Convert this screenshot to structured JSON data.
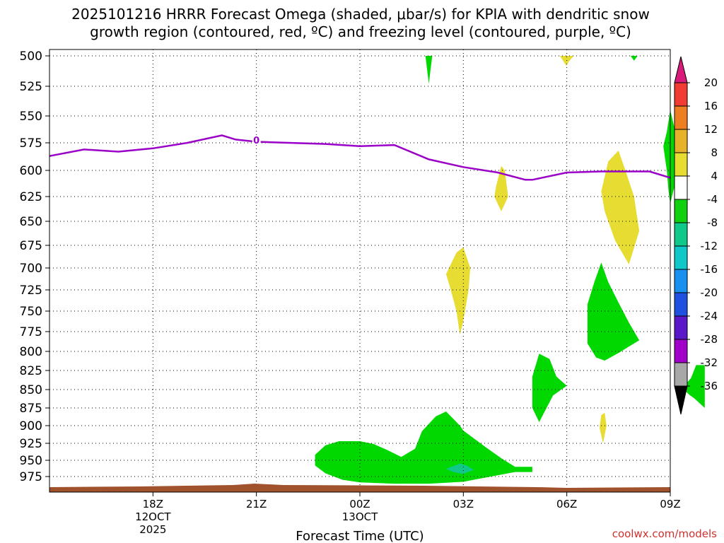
{
  "chart_data": {
    "type": "heatmap",
    "title_line1": "2025101216 HRRR Forecast Omega (shaded, μbar/s) for KPIA with dendritic snow",
    "title_line2": "growth region (contoured, red, ºC) and freezing level (contoured, purple, ºC)",
    "xlabel": "Forecast Time (UTC)",
    "credit": "coolwx.com/models",
    "x_range_hours": [
      -3,
      15
    ],
    "y_levels": [
      500,
      525,
      550,
      575,
      600,
      625,
      650,
      675,
      700,
      725,
      750,
      775,
      800,
      825,
      850,
      875,
      900,
      925,
      950,
      975
    ],
    "y_labels": [
      "500",
      "525",
      "550",
      "575",
      "600",
      "625",
      "650",
      "675",
      "700",
      "725",
      "750",
      "775",
      "800",
      "825",
      "850",
      "875",
      "900",
      "925",
      "950",
      "975"
    ],
    "x_ticks": [
      {
        "hour": 0,
        "label": "18Z",
        "sub1": "12OCT",
        "sub2": "2025"
      },
      {
        "hour": 3,
        "label": "21Z",
        "sub1": "",
        "sub2": ""
      },
      {
        "hour": 6,
        "label": "00Z",
        "sub1": "13OCT",
        "sub2": ""
      },
      {
        "hour": 9,
        "label": "03Z",
        "sub1": "",
        "sub2": ""
      },
      {
        "hour": 12,
        "label": "06Z",
        "sub1": "",
        "sub2": ""
      },
      {
        "hour": 15,
        "label": "09Z",
        "sub1": "",
        "sub2": ""
      }
    ],
    "freezing_level": {
      "label": "0",
      "color": "#9a00c8",
      "points": [
        [
          -3,
          587
        ],
        [
          -2,
          581
        ],
        [
          -1,
          583
        ],
        [
          0,
          580
        ],
        [
          1,
          575
        ],
        [
          2,
          568
        ],
        [
          2.4,
          572
        ],
        [
          3,
          574
        ],
        [
          5,
          576
        ],
        [
          6,
          578
        ],
        [
          7,
          577
        ],
        [
          8,
          590
        ],
        [
          9,
          597
        ],
        [
          10,
          602
        ],
        [
          10.8,
          609
        ],
        [
          11,
          609
        ],
        [
          12,
          602
        ],
        [
          13,
          601
        ],
        [
          14.4,
          601
        ],
        [
          15,
          607
        ]
      ]
    },
    "surface_color": "#a0522d",
    "colorbar": {
      "labels": [
        "20",
        "16",
        "12",
        "8",
        "4",
        "-4",
        "-8",
        "-12",
        "-16",
        "-20",
        "-24",
        "-28",
        "-32",
        "-36"
      ],
      "colors": [
        "#d81a7a",
        "#f03c32",
        "#ee7e22",
        "#e6b22a",
        "#e6dc32",
        "#ffffff",
        "#10d010",
        "#10c88a",
        "#10c8c8",
        "#1890f0",
        "#2050e0",
        "#5a18c8",
        "#a000c8",
        "#a8a8a8",
        "#000000"
      ]
    },
    "regions": [
      {
        "name": "omega-green-top",
        "value_range": [
          -8,
          -4
        ],
        "color": "#00d800",
        "points": [
          [
            7.9,
            500
          ],
          [
            8.1,
            500
          ],
          [
            8.05,
            511
          ],
          [
            8,
            523
          ]
        ]
      },
      {
        "name": "omega-yellow-top-right",
        "value_range": [
          4,
          8
        ],
        "color": "#e6dc32",
        "points": [
          [
            11.8,
            500
          ],
          [
            12.2,
            500
          ],
          [
            12.05,
            505
          ],
          [
            11.98,
            508
          ]
        ]
      },
      {
        "name": "omega-green-top-right",
        "value_range": [
          -8,
          -4
        ],
        "color": "#00d800",
        "points": [
          [
            13.85,
            500
          ],
          [
            14.05,
            500
          ],
          [
            13.95,
            504
          ]
        ]
      },
      {
        "name": "omega-green-upper-right",
        "value_range": [
          -8,
          -4
        ],
        "color": "#00d800",
        "points": [
          [
            14.8,
            578
          ],
          [
            14.9,
            565
          ],
          [
            15,
            545
          ],
          [
            15.15,
            565
          ],
          [
            15.25,
            580
          ],
          [
            15.2,
            605
          ],
          [
            15.05,
            625
          ],
          [
            15.0,
            632
          ],
          [
            14.95,
            620
          ],
          [
            14.9,
            600
          ]
        ]
      },
      {
        "name": "omega-yellow-mid-a",
        "value_range": [
          4,
          8
        ],
        "color": "#e6dc32",
        "points": [
          [
            9.95,
            615
          ],
          [
            10.1,
            596
          ],
          [
            10.2,
            600
          ],
          [
            10.3,
            625
          ],
          [
            10.1,
            640
          ],
          [
            9.9,
            625
          ]
        ]
      },
      {
        "name": "omega-yellow-mid-b",
        "value_range": [
          4,
          8
        ],
        "color": "#e6dc32",
        "points": [
          [
            13.0,
            620
          ],
          [
            13.2,
            592
          ],
          [
            13.5,
            582
          ],
          [
            13.75,
            605
          ],
          [
            13.95,
            625
          ],
          [
            14.1,
            660
          ],
          [
            13.9,
            684
          ],
          [
            13.8,
            696
          ],
          [
            13.4,
            670
          ],
          [
            13.1,
            640
          ]
        ]
      },
      {
        "name": "omega-yellow-700",
        "value_range": [
          4,
          8
        ],
        "color": "#e6dc32",
        "points": [
          [
            8.5,
            707
          ],
          [
            8.8,
            683
          ],
          [
            9.0,
            677
          ],
          [
            9.2,
            700
          ],
          [
            9.15,
            725
          ],
          [
            9.0,
            762
          ],
          [
            8.9,
            779
          ],
          [
            8.8,
            750
          ],
          [
            8.6,
            720
          ]
        ]
      },
      {
        "name": "omega-green-750",
        "value_range": [
          -8,
          -4
        ],
        "color": "#00d800",
        "points": [
          [
            12.6,
            742
          ],
          [
            12.8,
            716
          ],
          [
            13.0,
            694
          ],
          [
            13.2,
            716
          ],
          [
            13.5,
            740
          ],
          [
            13.8,
            764
          ],
          [
            14.1,
            786
          ],
          [
            13.5,
            802
          ],
          [
            13.1,
            812
          ],
          [
            12.85,
            808
          ],
          [
            12.6,
            790
          ]
        ]
      },
      {
        "name": "omega-green-830",
        "value_range": [
          -8,
          -4
        ],
        "color": "#00d800",
        "points": [
          [
            11.0,
            833
          ],
          [
            11.2,
            803
          ],
          [
            11.5,
            810
          ],
          [
            11.7,
            833
          ],
          [
            12.0,
            845
          ],
          [
            11.6,
            858
          ],
          [
            11.2,
            895
          ],
          [
            11.0,
            875
          ]
        ]
      },
      {
        "name": "omega-green-850-edge",
        "value_range": [
          -8,
          -4
        ],
        "color": "#00d800",
        "points": [
          [
            15.35,
            848
          ],
          [
            15.6,
            835
          ],
          [
            15.75,
            818
          ],
          [
            16,
            818
          ],
          [
            16,
            875
          ],
          [
            15.7,
            862
          ],
          [
            15.55,
            857
          ]
        ]
      },
      {
        "name": "omega-yellow-900",
        "value_range": [
          4,
          8
        ],
        "color": "#e6dc32",
        "points": [
          [
            12.95,
            903
          ],
          [
            13.0,
            885
          ],
          [
            13.1,
            882
          ],
          [
            13.15,
            900
          ],
          [
            13.05,
            925
          ]
        ]
      },
      {
        "name": "omega-green-low",
        "value_range": [
          -8,
          -4
        ],
        "color": "#00d800",
        "points": [
          [
            4.7,
            942
          ],
          [
            5.0,
            928
          ],
          [
            5.4,
            922
          ],
          [
            5.5,
            922
          ],
          [
            6.0,
            922
          ],
          [
            6.4,
            926
          ],
          [
            6.8,
            935
          ],
          [
            7.2,
            945
          ],
          [
            7.6,
            933
          ],
          [
            7.8,
            908
          ],
          [
            8.2,
            887
          ],
          [
            8.5,
            880
          ],
          [
            8.9,
            900
          ],
          [
            9.0,
            907
          ],
          [
            9.6,
            929
          ],
          [
            10.1,
            947
          ],
          [
            10.5,
            960
          ],
          [
            11.0,
            960
          ],
          [
            11.0,
            968
          ],
          [
            10.5,
            968
          ],
          [
            9.5,
            978
          ],
          [
            9.0,
            983
          ],
          [
            8.0,
            986
          ],
          [
            7.0,
            986
          ],
          [
            6.0,
            984
          ],
          [
            5.5,
            980
          ],
          [
            5.0,
            970
          ],
          [
            4.7,
            958
          ]
        ]
      },
      {
        "name": "omega-teal-low",
        "value_range": [
          -12,
          -8
        ],
        "color": "#10c88a",
        "points": [
          [
            8.5,
            963
          ],
          [
            8.9,
            955
          ],
          [
            9.1,
            958
          ],
          [
            9.3,
            965
          ],
          [
            9.0,
            971
          ],
          [
            8.7,
            968
          ]
        ]
      }
    ]
  }
}
